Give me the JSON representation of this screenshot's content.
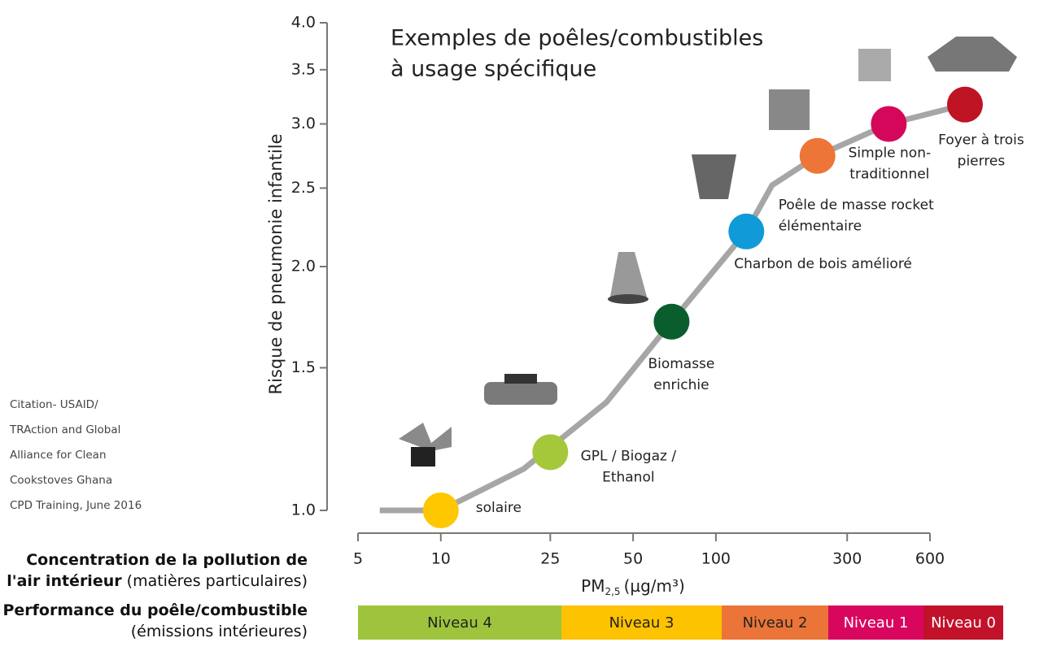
{
  "chart_data": {
    "type": "line",
    "title": [
      "Exemples de poêles/combustibles",
      "à usage spécifique"
    ],
    "y_label": "Risque de pneumonie infantile",
    "x_unit_main": "PM",
    "x_unit_sub": "2,5",
    "x_unit_rest": "(µg/m³)",
    "x_label_bold": "Concentration de la pollution de l'air intérieur",
    "x_label_note": "(matières particulaires)",
    "tier_label_bold": "Performance du poêle/combustible",
    "tier_label_note": "(émissions intérieures)",
    "citation": [
      "Citation- USAID/",
      "TRAction and Global",
      "Alliance for Clean",
      "Cookstoves Ghana",
      "CPD Training, June 2016"
    ],
    "x_log": true,
    "y_log": true,
    "xlim": [
      5,
      600
    ],
    "ylim": [
      1,
      4
    ],
    "xticks": [
      5,
      10,
      25,
      50,
      100,
      300,
      600
    ],
    "yticks": [
      {
        "value": 1,
        "label": "1.0"
      },
      1.5,
      {
        "value": 2,
        "label": "2.0"
      },
      2.5,
      {
        "value": 3,
        "label": "3.0"
      },
      3.5,
      {
        "value": 4,
        "label": "4.0"
      }
    ],
    "curve": {
      "color": "#a6a6a6",
      "x": [
        6,
        10,
        20,
        40,
        69,
        129,
        160,
        234,
        425,
        804
      ],
      "values": [
        1.0,
        1.0,
        1.125,
        1.36,
        1.71,
        2.21,
        2.52,
        2.74,
        3.0,
        3.17
      ]
    },
    "points": {
      "x": [
        10,
        25,
        69,
        129,
        234,
        425,
        804
      ],
      "values": [
        1.0,
        1.18,
        1.71,
        2.21,
        2.74,
        3.0,
        3.17
      ],
      "colors": [
        "#ffc700",
        "#a5c83b",
        "#0a5e2d",
        "#119ad8",
        "#ec7537",
        "#d5075a",
        "#be1424"
      ],
      "labels": [
        [
          "solaire"
        ],
        [
          "GPL / Biogaz /",
          "Ethanol"
        ],
        [
          "Biomasse",
          "enrichie"
        ],
        [
          "Charbon de bois amélioré"
        ],
        [
          "Poêle de masse rocket",
          "élémentaire"
        ],
        [
          "Simple non-",
          "traditionnel"
        ],
        [
          "Foyer à trois",
          "pierres"
        ]
      ]
    },
    "tiers": [
      {
        "name": "Niveau 4",
        "color": "#9dc43c"
      },
      {
        "name": "Niveau 3",
        "color": "#fdc300"
      },
      {
        "name": "Niveau 2",
        "color": "#eb7538"
      },
      {
        "name": "Niveau 1",
        "color": "#d9065e"
      },
      {
        "name": "Niveau 0",
        "color": "#c2122a"
      }
    ]
  }
}
